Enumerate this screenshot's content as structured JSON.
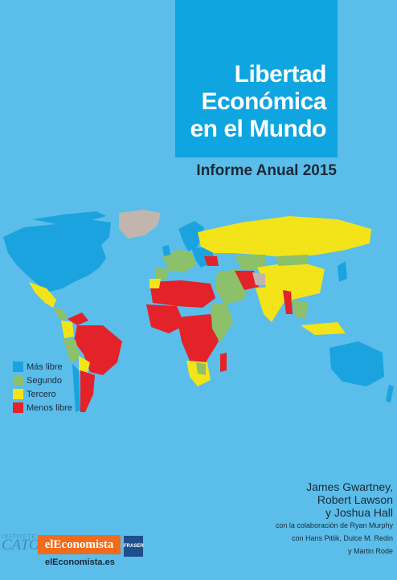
{
  "cover": {
    "title_lines": [
      "Libertad",
      "Económica",
      "en el Mundo"
    ],
    "subtitle": "Informe Anual 2015"
  },
  "legend": {
    "items": [
      {
        "label": "Más libre",
        "color": "#1aa3df"
      },
      {
        "label": "Segundo",
        "color": "#8cc06a"
      },
      {
        "label": "Tercero",
        "color": "#f3e419"
      },
      {
        "label": "Menos libre",
        "color": "#e32229"
      }
    ]
  },
  "colors": {
    "background": "#5bbde9",
    "title_box": "#0ea5e0",
    "no_data": "#c2b5ae"
  },
  "authors": {
    "lines": [
      "James Gwartney,",
      "Robert Lawson",
      "y Joshua Hall"
    ],
    "collab_lines": [
      "con la colaboración de Ryan Murphy",
      "con Hans Pitlik, Dulce M. Redin",
      "y Martin Rode"
    ]
  },
  "publishers": {
    "cato_label": "CATO",
    "cato_small": "INSTITUTE",
    "eleconomista_logo": "elEconomista",
    "eleconomista_url": "elEconomista.es",
    "fraser_label": "FRASER"
  }
}
